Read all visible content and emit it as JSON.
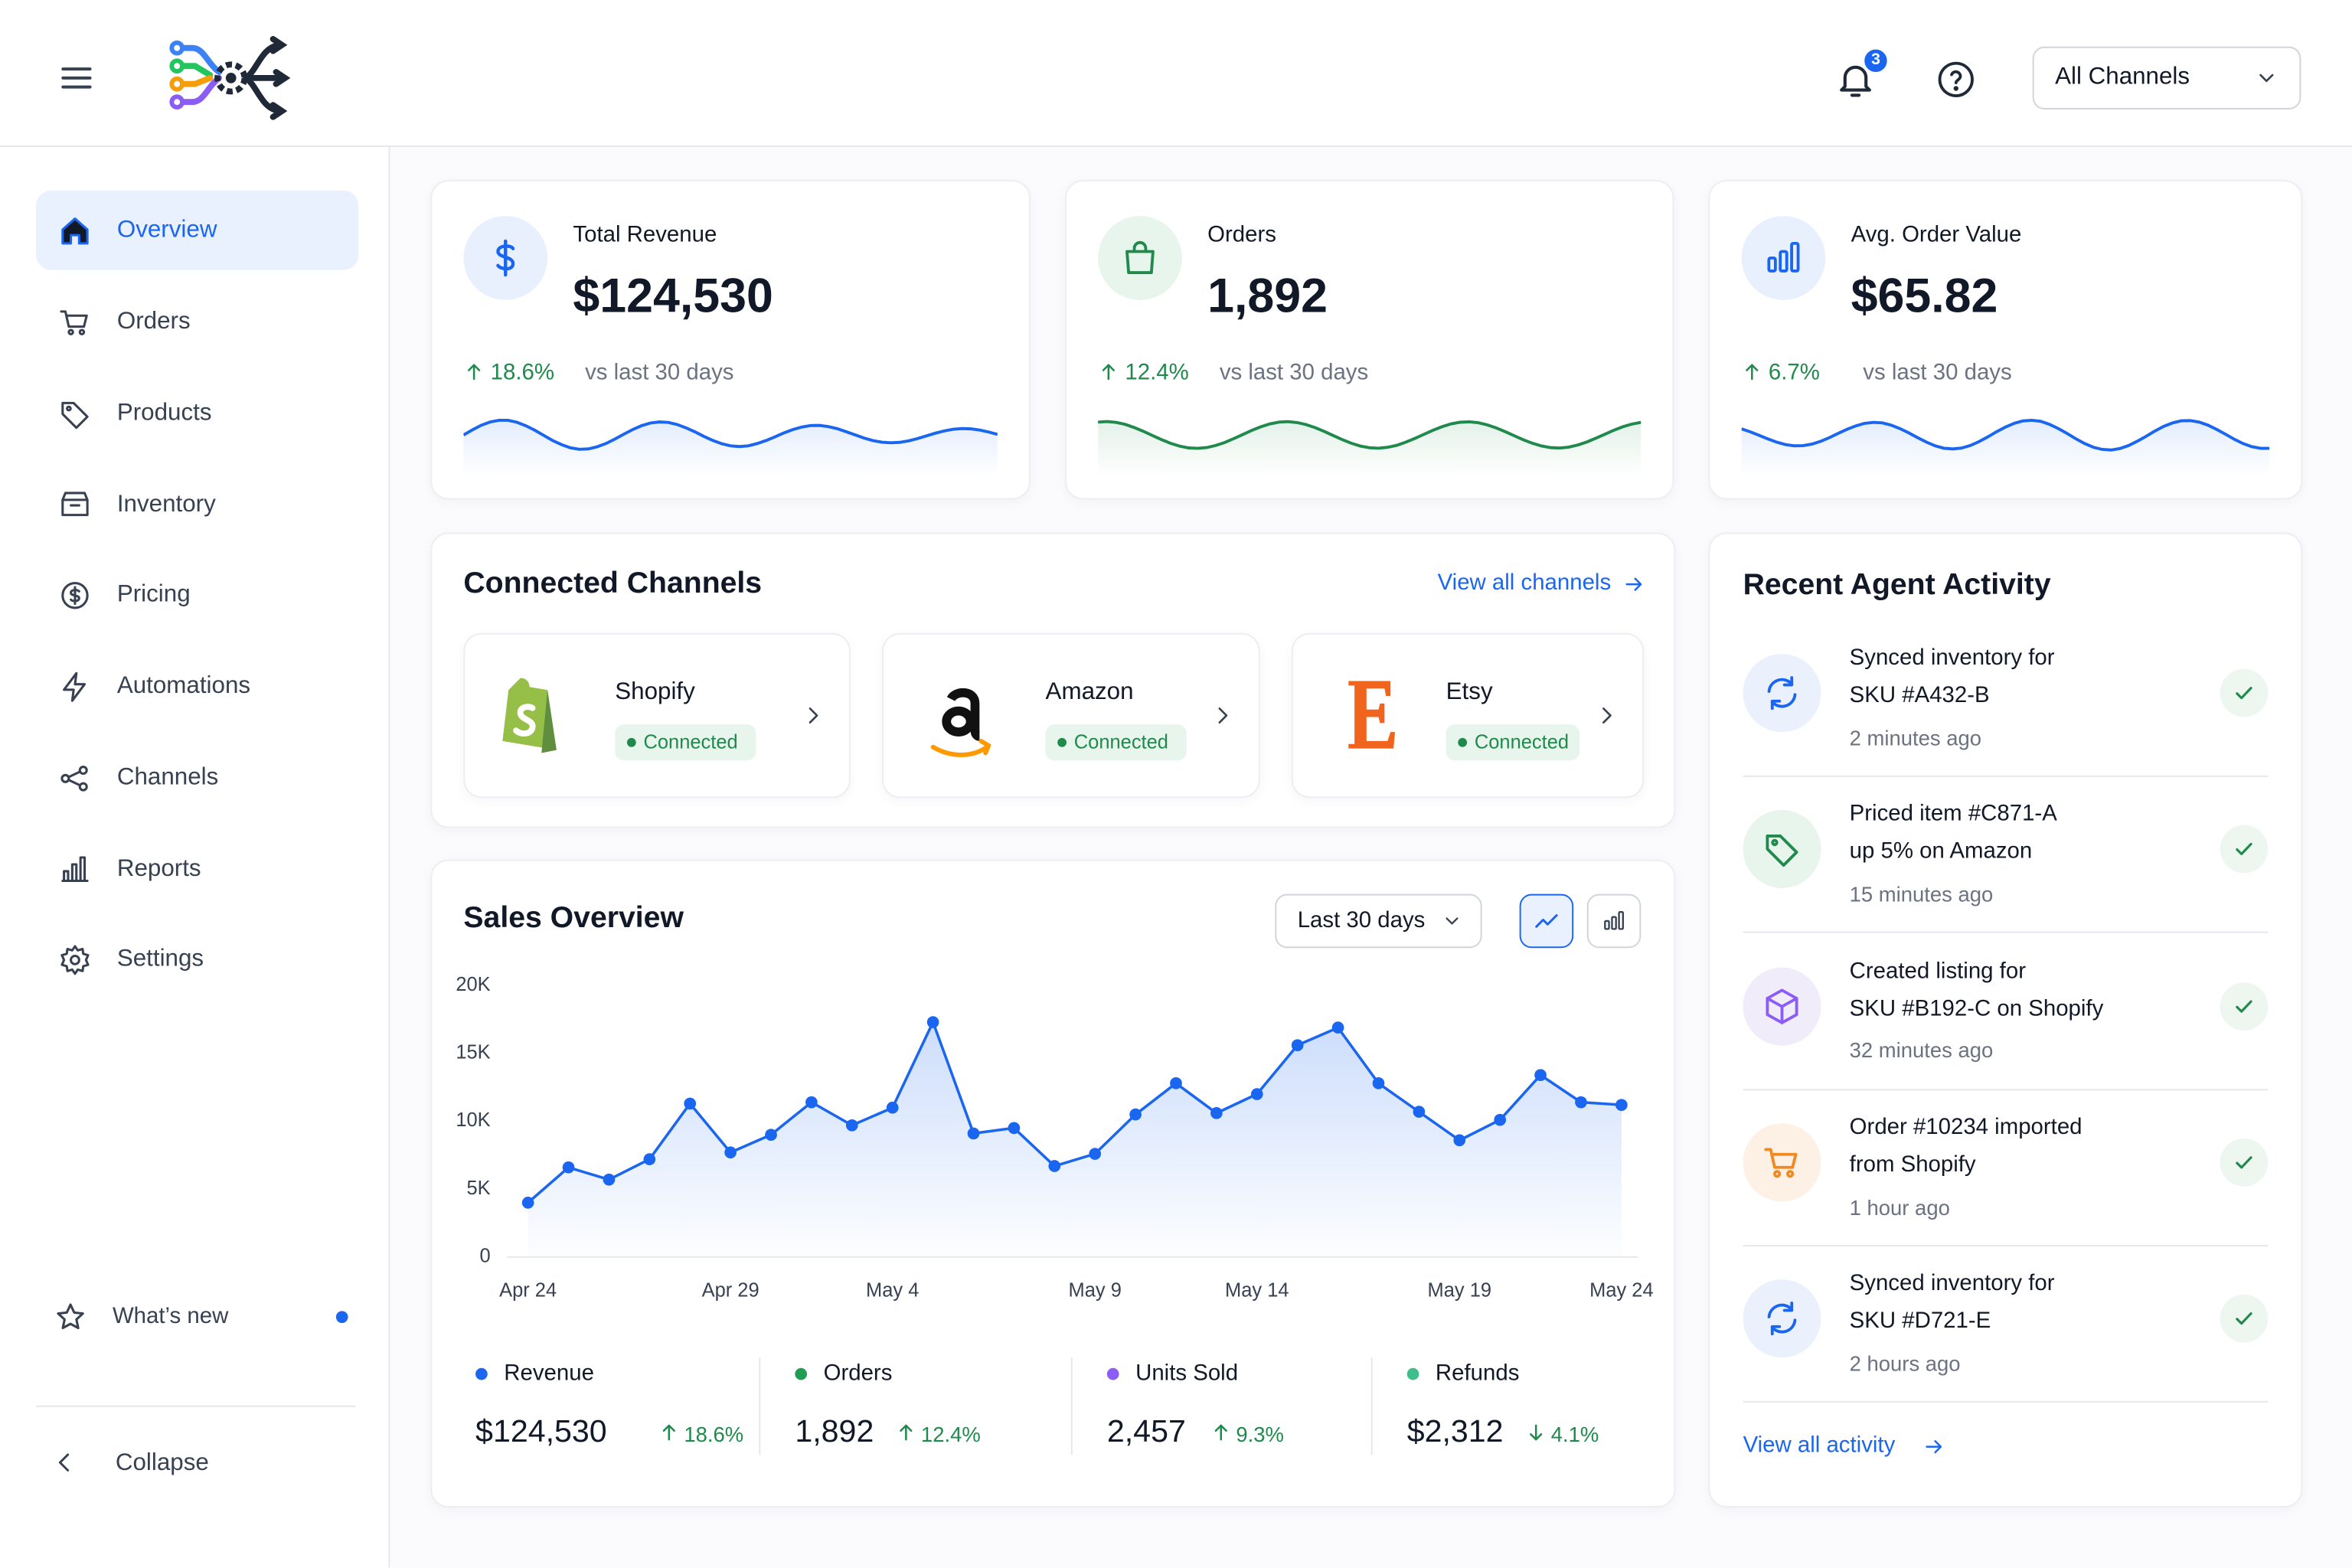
{
  "header": {
    "notifications": "3",
    "channel_select": "All Channels"
  },
  "nav": {
    "items": [
      "Overview",
      "Orders",
      "Products",
      "Inventory",
      "Pricing",
      "Automations",
      "Channels",
      "Reports",
      "Settings"
    ],
    "whats_new": "What’s new",
    "collapse": "Collapse"
  },
  "kpis": [
    {
      "label": "Total Revenue",
      "value": "$124,530",
      "change": "18.6%",
      "period": "vs last 30 days"
    },
    {
      "label": "Orders",
      "value": "1,892",
      "change": "12.4%",
      "period": "vs last 30 days"
    },
    {
      "label": "Avg. Order Value",
      "value": "$65.82",
      "change": "6.7%",
      "period": "vs last 30 days"
    }
  ],
  "channels": {
    "title": "Connected Channels",
    "link": "View all channels",
    "items": [
      {
        "name": "Shopify",
        "status": "Connected"
      },
      {
        "name": "Amazon",
        "status": "Connected"
      },
      {
        "name": "Etsy",
        "status": "Connected"
      }
    ]
  },
  "chart_data": {
    "type": "line",
    "title": "Sales Overview",
    "range": "Last 30 days",
    "color": "#1a66f0",
    "categories": [
      "Apr 24",
      null,
      null,
      null,
      null,
      "Apr 29",
      null,
      null,
      null,
      "May 4",
      null,
      null,
      null,
      null,
      "May 9",
      null,
      null,
      null,
      "May 14",
      null,
      null,
      null,
      null,
      "May 19",
      null,
      null,
      null,
      "May 24"
    ],
    "values": [
      4000,
      6600,
      5700,
      7200,
      11300,
      7700,
      9000,
      11400,
      9700,
      11000,
      17300,
      9100,
      9500,
      6700,
      7600,
      10500,
      12800,
      10600,
      12000,
      15600,
      16900,
      12800,
      10700,
      8600,
      10100,
      13400,
      11400,
      11200
    ],
    "ylim": [
      0,
      20000
    ],
    "yticks": [
      0,
      {
        "value": 5000,
        "label": "5K"
      },
      {
        "value": 10000,
        "label": "10K"
      },
      {
        "value": 15000,
        "label": "15K"
      },
      {
        "value": 20000,
        "label": "20K"
      }
    ]
  },
  "summary": [
    {
      "name": "Revenue",
      "color": "#1a66f0",
      "value": "$124,530",
      "change": "18.6%",
      "trend": "up"
    },
    {
      "name": "Orders",
      "color": "#1f9d55",
      "value": "1,892",
      "change": "12.4%",
      "trend": "up"
    },
    {
      "name": "Units Sold",
      "color": "#8b5cf6",
      "value": "2,457",
      "change": "9.3%",
      "trend": "up"
    },
    {
      "name": "Refunds",
      "color": "#3dbf8a",
      "value": "$2,312",
      "change": "4.1%",
      "trend": "down"
    }
  ],
  "activity": {
    "title": "Recent Agent Activity",
    "link": "View all activity",
    "items": [
      {
        "lines": [
          "Synced inventory for",
          "SKU #A432-B"
        ],
        "time": "2 minutes ago"
      },
      {
        "lines": [
          "Priced item #C871-A",
          "up 5% on Amazon"
        ],
        "time": "15 minutes ago"
      },
      {
        "lines": [
          "Created listing for",
          "SKU #B192-C on Shopify"
        ],
        "time": "32 minutes ago"
      },
      {
        "lines": [
          "Order #10234 imported",
          "from Shopify"
        ],
        "time": "1 hour ago"
      },
      {
        "lines": [
          "Synced inventory for",
          "SKU #D721-E"
        ],
        "time": "2 hours ago"
      }
    ]
  }
}
